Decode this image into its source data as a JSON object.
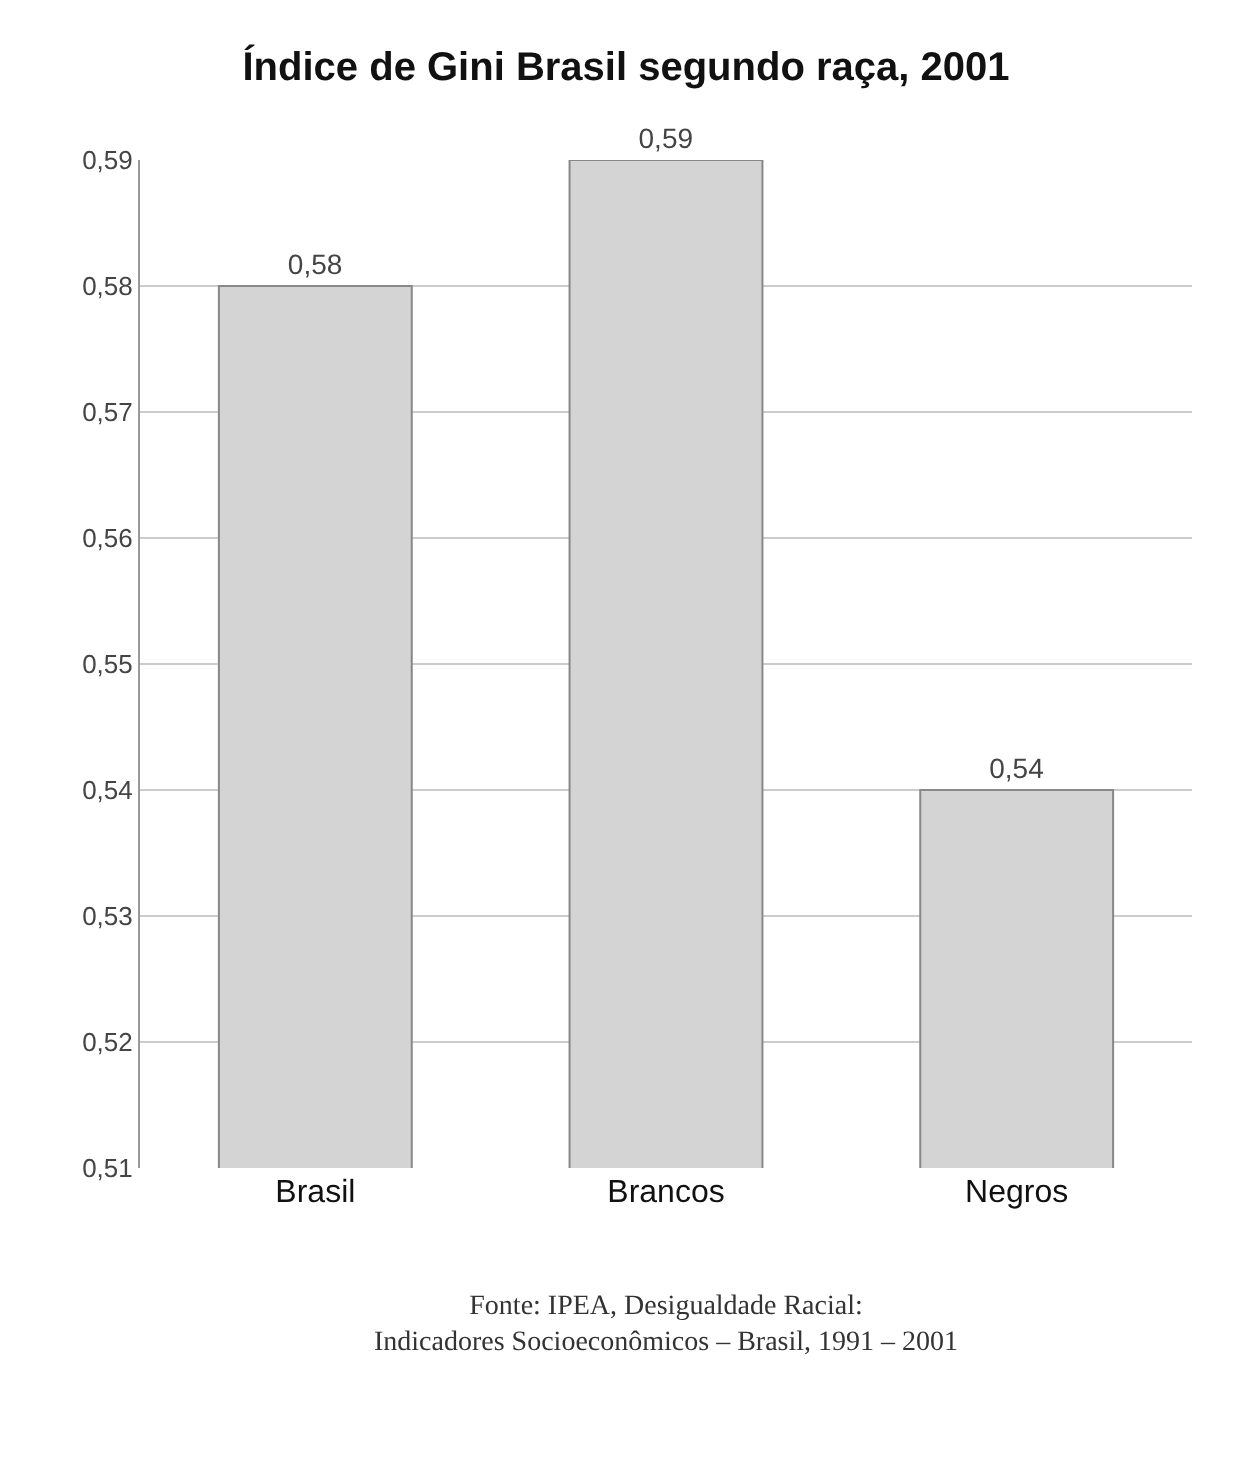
{
  "chart_data": {
    "type": "bar",
    "title": "Índice de Gini Brasil segundo raça, 2001",
    "categories": [
      "Brasil",
      "Brancos",
      "Negros"
    ],
    "values": [
      0.58,
      0.59,
      0.54
    ],
    "value_labels": [
      "0,58",
      "0,59",
      "0,54"
    ],
    "color": "#d4d4d4",
    "ylim": [
      0.51,
      0.59
    ],
    "yticks": [
      {
        "value": 0.51,
        "label": "0,51"
      },
      {
        "value": 0.52,
        "label": "0,52"
      },
      {
        "value": 0.53,
        "label": "0,53"
      },
      {
        "value": 0.54,
        "label": "0,54"
      },
      {
        "value": 0.55,
        "label": "0,55"
      },
      {
        "value": 0.56,
        "label": "0,56"
      },
      {
        "value": 0.57,
        "label": "0,57"
      },
      {
        "value": 0.58,
        "label": "0,58"
      },
      {
        "value": 0.59,
        "label": "0,59"
      }
    ],
    "grid": "y",
    "annotations": [
      "Fonte: IPEA, Desigualdade Racial:\nIndicadores Socioeconômicos – Brasil, 1991 – 2001"
    ]
  }
}
